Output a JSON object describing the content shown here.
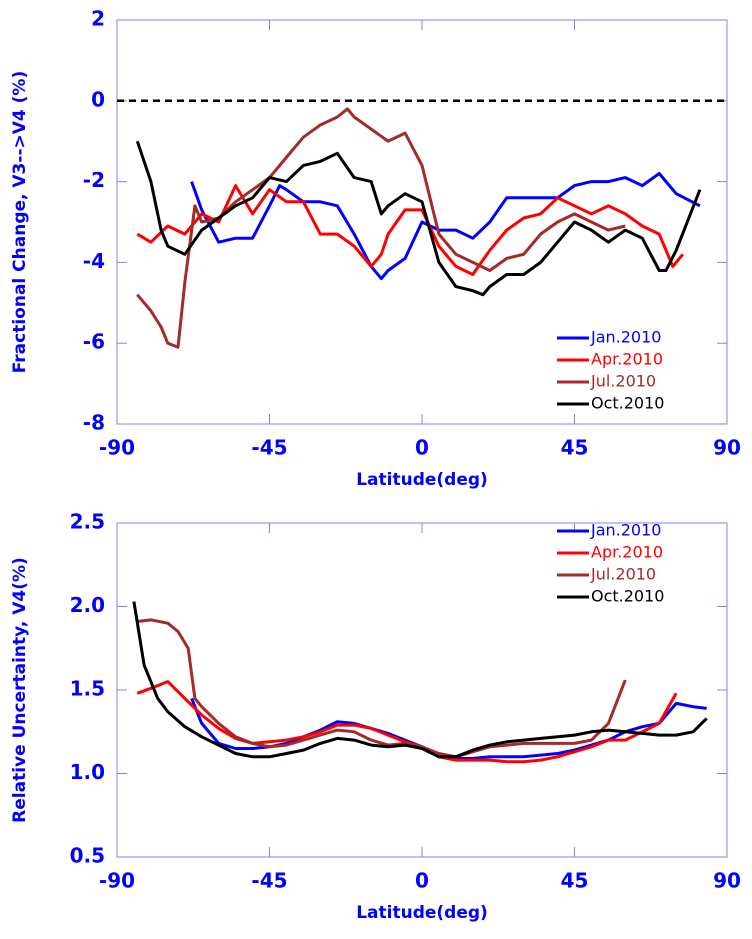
{
  "chart_data": [
    {
      "type": "line",
      "xlabel": "Latitude(deg)",
      "ylabel": "Fractional Change, V3-->V4 (%)",
      "xlim": [
        -90,
        90
      ],
      "xticks": [
        -90,
        -45,
        0,
        45,
        90
      ],
      "ylim": [
        -8,
        2
      ],
      "yticks": [
        -8,
        -6,
        -4,
        -2,
        0,
        2
      ],
      "hline": 0,
      "legend": "lower right",
      "series": [
        {
          "name": "Jan.2010",
          "color": "#0000ff",
          "x": [
            -68,
            -65,
            -60,
            -55,
            -50,
            -45,
            -42,
            -40,
            -35,
            -30,
            -25,
            -20,
            -15,
            -12,
            -10,
            -5,
            0,
            5,
            10,
            15,
            20,
            25,
            30,
            35,
            40,
            45,
            50,
            55,
            60,
            65,
            70,
            75,
            82
          ],
          "values": [
            -2.0,
            -2.7,
            -3.5,
            -3.4,
            -3.4,
            -2.6,
            -2.1,
            -2.2,
            -2.5,
            -2.5,
            -2.6,
            -3.3,
            -4.1,
            -4.4,
            -4.2,
            -3.9,
            -3.0,
            -3.2,
            -3.2,
            -3.4,
            -3.0,
            -2.4,
            -2.4,
            -2.4,
            -2.4,
            -2.1,
            -2.0,
            -2.0,
            -1.9,
            -2.1,
            -1.8,
            -2.3,
            -2.6
          ]
        },
        {
          "name": "Apr.2010",
          "color": "#ff0000",
          "x": [
            -84,
            -80,
            -75,
            -70,
            -65,
            -60,
            -55,
            -50,
            -45,
            -40,
            -35,
            -30,
            -25,
            -20,
            -15,
            -12,
            -10,
            -5,
            0,
            5,
            10,
            15,
            20,
            25,
            30,
            35,
            40,
            45,
            50,
            55,
            60,
            65,
            70,
            74,
            77
          ],
          "values": [
            -3.3,
            -3.5,
            -3.1,
            -3.3,
            -2.8,
            -3.0,
            -2.1,
            -2.8,
            -2.2,
            -2.5,
            -2.5,
            -3.3,
            -3.3,
            -3.6,
            -4.1,
            -3.8,
            -3.3,
            -2.7,
            -2.7,
            -3.6,
            -4.1,
            -4.3,
            -3.7,
            -3.2,
            -2.9,
            -2.8,
            -2.4,
            -2.6,
            -2.8,
            -2.6,
            -2.8,
            -3.1,
            -3.3,
            -4.1,
            -3.8
          ]
        },
        {
          "name": "Jul.2010",
          "color": "#a52a2a",
          "x": [
            -84,
            -80,
            -77,
            -75,
            -72,
            -70,
            -67,
            -65,
            -60,
            -55,
            -50,
            -45,
            -40,
            -35,
            -30,
            -25,
            -22,
            -20,
            -15,
            -10,
            -5,
            0,
            5,
            10,
            15,
            20,
            25,
            30,
            35,
            40,
            45,
            50,
            55,
            60
          ],
          "values": [
            -4.8,
            -5.2,
            -5.6,
            -6.0,
            -6.1,
            -4.5,
            -2.6,
            -3.0,
            -2.9,
            -2.5,
            -2.2,
            -1.9,
            -1.4,
            -0.9,
            -0.6,
            -0.4,
            -0.2,
            -0.4,
            -0.7,
            -1.0,
            -0.8,
            -1.6,
            -3.3,
            -3.8,
            -4.0,
            -4.2,
            -3.9,
            -3.8,
            -3.3,
            -3.0,
            -2.8,
            -3.0,
            -3.2,
            -3.1
          ]
        },
        {
          "name": "Oct.2010",
          "color": "#000000",
          "x": [
            -84,
            -80,
            -77,
            -75,
            -70,
            -65,
            -60,
            -55,
            -50,
            -45,
            -40,
            -35,
            -30,
            -25,
            -20,
            -15,
            -12,
            -10,
            -5,
            0,
            5,
            10,
            15,
            18,
            20,
            25,
            30,
            35,
            40,
            45,
            50,
            55,
            60,
            65,
            70,
            72,
            75,
            82
          ],
          "values": [
            -1.0,
            -2.0,
            -3.2,
            -3.6,
            -3.8,
            -3.2,
            -2.9,
            -2.6,
            -2.4,
            -1.9,
            -2.0,
            -1.6,
            -1.5,
            -1.3,
            -1.9,
            -2.0,
            -2.8,
            -2.6,
            -2.3,
            -2.5,
            -4.0,
            -4.6,
            -4.7,
            -4.8,
            -4.6,
            -4.3,
            -4.3,
            -4.0,
            -3.5,
            -3.0,
            -3.2,
            -3.5,
            -3.2,
            -3.4,
            -4.2,
            -4.2,
            -3.7,
            -2.2
          ]
        }
      ]
    },
    {
      "type": "line",
      "xlabel": "Latitude(deg)",
      "ylabel": "Relative Uncertainty, V4(%)",
      "xlim": [
        -90,
        90
      ],
      "xticks": [
        -90,
        -45,
        0,
        45,
        90
      ],
      "ylim": [
        0.5,
        2.5
      ],
      "yticks": [
        0.5,
        {
          "value": 1,
          "label": "1.0"
        },
        1.5,
        {
          "value": 2,
          "label": "2.0"
        },
        2.5
      ],
      "legend": "upper right",
      "series": [
        {
          "name": "Jan.2010",
          "color": "#0000ff",
          "x": [
            -68,
            -65,
            -60,
            -55,
            -50,
            -45,
            -40,
            -35,
            -30,
            -25,
            -20,
            -15,
            -10,
            -5,
            0,
            5,
            10,
            15,
            20,
            25,
            30,
            35,
            40,
            45,
            50,
            55,
            60,
            65,
            70,
            75,
            80,
            84
          ],
          "values": [
            1.45,
            1.3,
            1.18,
            1.15,
            1.15,
            1.16,
            1.18,
            1.22,
            1.26,
            1.31,
            1.3,
            1.27,
            1.24,
            1.2,
            1.16,
            1.1,
            1.09,
            1.09,
            1.1,
            1.1,
            1.1,
            1.11,
            1.12,
            1.14,
            1.17,
            1.2,
            1.25,
            1.28,
            1.3,
            1.42,
            1.4,
            1.39
          ]
        },
        {
          "name": "Apr.2010",
          "color": "#ff0000",
          "x": [
            -84,
            -80,
            -75,
            -70,
            -65,
            -60,
            -55,
            -50,
            -45,
            -40,
            -35,
            -30,
            -25,
            -20,
            -15,
            -10,
            -5,
            0,
            5,
            10,
            15,
            20,
            25,
            30,
            35,
            40,
            45,
            50,
            55,
            60,
            65,
            70,
            75
          ],
          "values": [
            1.48,
            1.51,
            1.55,
            1.45,
            1.35,
            1.27,
            1.21,
            1.18,
            1.19,
            1.2,
            1.22,
            1.25,
            1.29,
            1.29,
            1.27,
            1.23,
            1.19,
            1.16,
            1.1,
            1.08,
            1.08,
            1.08,
            1.07,
            1.07,
            1.08,
            1.1,
            1.13,
            1.16,
            1.2,
            1.2,
            1.25,
            1.3,
            1.48
          ]
        },
        {
          "name": "Jul.2010",
          "color": "#a52a2a",
          "x": [
            -84,
            -80,
            -75,
            -72,
            -69,
            -67,
            -65,
            -60,
            -55,
            -50,
            -45,
            -40,
            -35,
            -30,
            -25,
            -20,
            -15,
            -10,
            -5,
            0,
            5,
            10,
            15,
            20,
            25,
            30,
            35,
            40,
            45,
            50,
            55,
            60
          ],
          "values": [
            1.91,
            1.92,
            1.9,
            1.85,
            1.75,
            1.45,
            1.4,
            1.3,
            1.22,
            1.18,
            1.16,
            1.17,
            1.2,
            1.23,
            1.26,
            1.25,
            1.2,
            1.17,
            1.18,
            1.16,
            1.12,
            1.1,
            1.13,
            1.16,
            1.17,
            1.18,
            1.18,
            1.18,
            1.18,
            1.2,
            1.3,
            1.56
          ]
        },
        {
          "name": "Oct.2010",
          "color": "#000000",
          "x": [
            -85,
            -82,
            -78,
            -75,
            -70,
            -65,
            -60,
            -55,
            -50,
            -45,
            -40,
            -35,
            -30,
            -25,
            -20,
            -15,
            -10,
            -5,
            0,
            5,
            10,
            15,
            20,
            25,
            30,
            35,
            40,
            45,
            50,
            55,
            60,
            65,
            70,
            75,
            80,
            84
          ],
          "values": [
            2.03,
            1.65,
            1.45,
            1.37,
            1.28,
            1.22,
            1.17,
            1.12,
            1.1,
            1.1,
            1.12,
            1.14,
            1.18,
            1.21,
            1.2,
            1.17,
            1.16,
            1.17,
            1.15,
            1.1,
            1.1,
            1.14,
            1.17,
            1.19,
            1.2,
            1.21,
            1.22,
            1.23,
            1.25,
            1.26,
            1.25,
            1.24,
            1.23,
            1.23,
            1.25,
            1.33
          ]
        }
      ]
    }
  ]
}
